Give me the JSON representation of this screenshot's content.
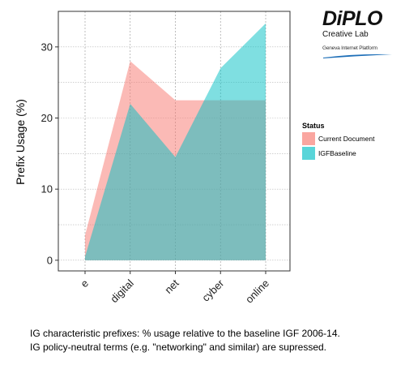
{
  "chart_data": {
    "type": "area",
    "categories": [
      "e",
      "digital",
      "net",
      "cyber",
      "online"
    ],
    "series": [
      {
        "name": "Current Document",
        "values": [
          3.5,
          28,
          22.5,
          22.5,
          22.5
        ],
        "color": "#f8766d"
      },
      {
        "name": "IGFBaseline",
        "values": [
          0.5,
          22,
          14.5,
          27,
          33.3
        ],
        "color": "#00bfc4"
      }
    ],
    "ylabel": "Prefix Usage (%)",
    "xlabel": "",
    "ylim": [
      -1.5,
      35
    ],
    "yticks": [
      0,
      10,
      20,
      30
    ],
    "grid": true,
    "legend": {
      "title": "Status",
      "position": "right"
    }
  },
  "logo": {
    "brand": "DiPLO",
    "sub": "Creative Lab",
    "platform": "Geneva Internet Platform"
  },
  "caption": {
    "line1": "IG characteristic prefixes: % usage relative to the baseline IGF 2006-14.",
    "line2": "IG policy-neutral terms (e.g. \"networking\" and similar) are supressed."
  }
}
